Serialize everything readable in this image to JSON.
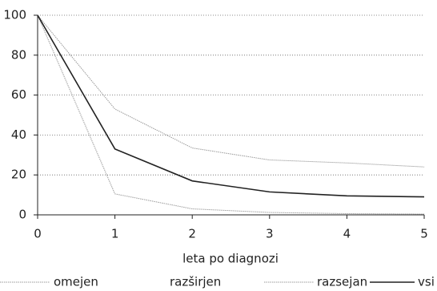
{
  "chart_data": {
    "type": "line",
    "x_label": "leta po diagnozi",
    "x": [
      0,
      1,
      2,
      3,
      4,
      5
    ],
    "xlim": [
      0,
      5
    ],
    "xticks": [
      0,
      1,
      2,
      3,
      4,
      5
    ],
    "ylim": [
      0,
      100
    ],
    "yticks": [
      0,
      20,
      40,
      60,
      80,
      100
    ],
    "grid": true,
    "legend": "bottom",
    "series": [
      {
        "name": "omejen",
        "color": "#9a9a9a",
        "values": [
          100,
          53,
          33.5,
          27.5,
          26,
          24
        ]
      },
      {
        "name": "razširjen",
        "color": "#c8c8c8",
        "values": [
          null,
          null,
          null,
          null,
          null,
          null
        ]
      },
      {
        "name": "razsejan",
        "color": "#9a9a9a",
        "values": [
          100,
          10.5,
          3,
          1.2,
          0.6,
          0.4
        ]
      },
      {
        "name": "vsi",
        "color": "#222222",
        "values": [
          100,
          33,
          17,
          11.5,
          9.5,
          9
        ]
      }
    ]
  }
}
